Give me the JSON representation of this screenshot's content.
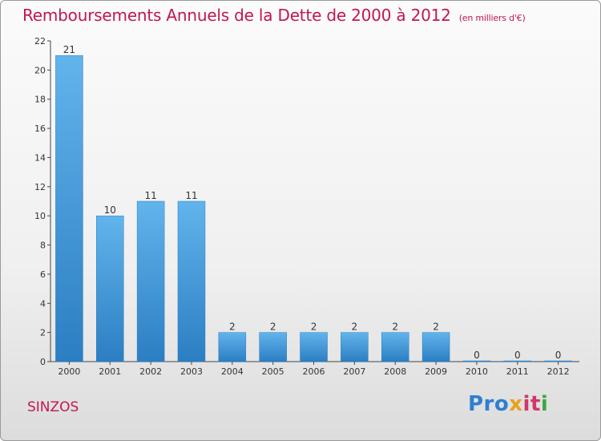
{
  "header": {
    "title": "Remboursements Annuels de la Dette de 2000 à 2012",
    "unit": "(en milliers d'€)"
  },
  "footer": {
    "commune": "SINZOS",
    "logo_text": "Proxiti",
    "logo_parts": [
      "Pro",
      "x",
      "it",
      "i"
    ]
  },
  "colors": {
    "accent": "#c0184f",
    "bar_light": "#5aaee8",
    "bar_dark": "#2a7dc0"
  },
  "chart_data": {
    "type": "bar",
    "title": "Remboursements Annuels de la Dette de 2000 à 2012",
    "subtitle": "(en milliers d'€)",
    "xlabel": "",
    "ylabel": "",
    "categories": [
      "2000",
      "2001",
      "2002",
      "2003",
      "2004",
      "2005",
      "2006",
      "2007",
      "2008",
      "2009",
      "2010",
      "2011",
      "2012"
    ],
    "values": [
      21,
      10,
      11,
      11,
      2,
      2,
      2,
      2,
      2,
      2,
      0,
      0,
      0
    ],
    "ylim": [
      0,
      22
    ],
    "yticks": [
      0,
      2,
      4,
      6,
      8,
      10,
      12,
      14,
      16,
      18,
      20,
      22
    ],
    "grid": false,
    "legend": "none"
  }
}
